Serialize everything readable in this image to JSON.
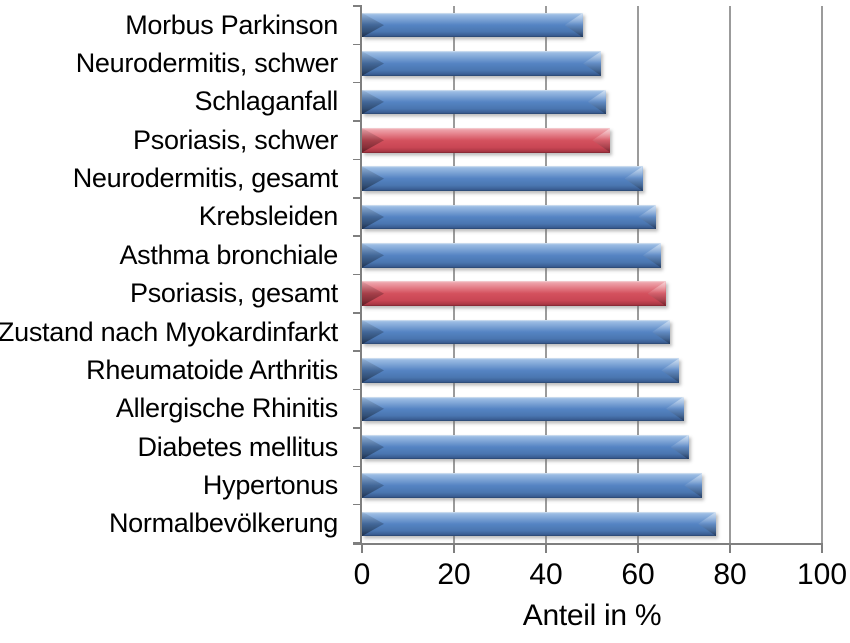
{
  "chart_data": {
    "type": "bar",
    "orientation": "horizontal",
    "title": "",
    "xlabel": "Anteil in %",
    "ylabel": "",
    "xlim": [
      0,
      100
    ],
    "xticks": [
      0,
      20,
      40,
      60,
      80,
      100
    ],
    "grid": "vertical gridlines at every x tick",
    "legend": "none",
    "categories": [
      "Morbus Parkinson",
      "Neurodermitis, schwer",
      "Schlaganfall",
      "Psoriasis, schwer",
      "Neurodermitis, gesamt",
      "Krebsleiden",
      "Asthma bronchiale",
      "Psoriasis, gesamt",
      "Zustand nach Myokardinfarkt",
      "Rheumatoide Arthritis",
      "Allergische Rhinitis",
      "Diabetes mellitus",
      "Hypertonus",
      "Normalbevölkerung"
    ],
    "values": [
      48,
      52,
      53,
      54,
      61,
      64,
      65,
      66,
      67,
      69,
      70,
      71,
      74,
      77
    ],
    "bar_colors": [
      "blue",
      "blue",
      "blue",
      "red",
      "blue",
      "blue",
      "blue",
      "red",
      "blue",
      "blue",
      "blue",
      "blue",
      "blue",
      "blue"
    ],
    "colors": {
      "bar_blue": "#4F7EBC",
      "bar_blue_highlight": "#9BBCE3",
      "bar_blue_dark": "#28456E",
      "bar_red": "#D4515E",
      "bar_red_highlight": "#EDA3AA",
      "bar_red_dark": "#7C242E",
      "gridline": "#9B9B9B",
      "axis": "#7F7F7F",
      "text": "#000000",
      "background": "#FFFFFF"
    }
  }
}
